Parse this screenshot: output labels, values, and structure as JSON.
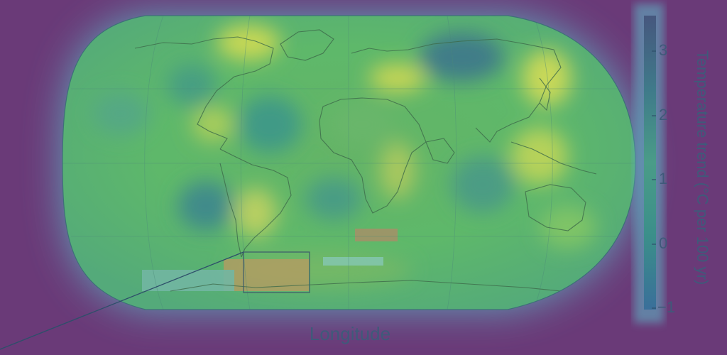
{
  "map": {
    "projection": "robinson",
    "background_color": "#6a3a78",
    "glow_color": "#5fb0c2",
    "inset_box_present": true
  },
  "axes": {
    "xlabel": "Longitude"
  },
  "colorbar": {
    "label": "Temperature trend (°C per 100 yr)",
    "ticks": [
      "3",
      "2",
      "1",
      "0",
      "−1"
    ],
    "range": [
      -1,
      3.5
    ],
    "colors": [
      "#2a6e8e",
      "#2f8f8a",
      "#52b46a",
      "#9bd45a",
      "#d6e14b",
      "#47597e"
    ]
  }
}
